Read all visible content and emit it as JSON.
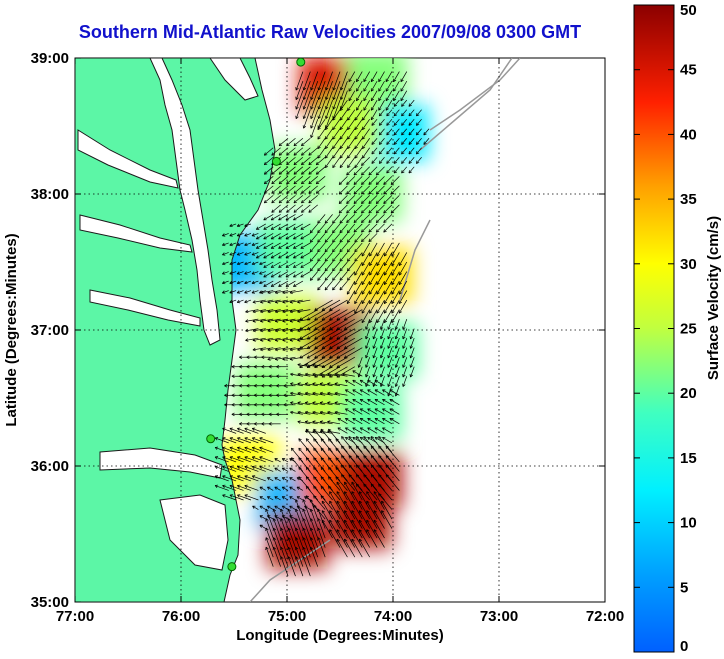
{
  "title": "Southern Mid-Atlantic Raw Velocities 2007/09/08 0300 GMT",
  "map": {
    "xlabel": "Longitude (Degrees:Minutes)",
    "ylabel": "Latitude (Degrees:Minutes)",
    "lon_range": [
      -77,
      -72
    ],
    "lat_range": [
      35,
      39
    ],
    "x_ticks": [
      {
        "value": -77,
        "label": "77:00"
      },
      {
        "value": -76,
        "label": "76:00"
      },
      {
        "value": -75,
        "label": "75:00"
      },
      {
        "value": -74,
        "label": "74:00"
      },
      {
        "value": -73,
        "label": "73:00"
      },
      {
        "value": -72,
        "label": "72:00"
      }
    ],
    "y_ticks": [
      {
        "value": 39,
        "label": "39:00"
      },
      {
        "value": 38,
        "label": "38:00"
      },
      {
        "value": 37,
        "label": "37:00"
      },
      {
        "value": 36,
        "label": "36:00"
      },
      {
        "value": 35,
        "label": "35:00"
      }
    ],
    "grid": "dotted",
    "land_color": "#5cf6a6",
    "coast_color": "#1a1a1a",
    "bathymetry_color": "#999999"
  },
  "colorbar": {
    "label": "Surface Velocity (cm/s)",
    "range": [
      0,
      50
    ],
    "ticks": [
      {
        "value": 0,
        "label": "0"
      },
      {
        "value": 5,
        "label": "5"
      },
      {
        "value": 10,
        "label": "10"
      },
      {
        "value": 15,
        "label": "15"
      },
      {
        "value": 20,
        "label": "20"
      },
      {
        "value": 25,
        "label": "25"
      },
      {
        "value": 30,
        "label": "30"
      },
      {
        "value": 35,
        "label": "35"
      },
      {
        "value": 40,
        "label": "40"
      },
      {
        "value": 45,
        "label": "45"
      },
      {
        "value": 50,
        "label": "50"
      }
    ],
    "colormap": "jet"
  },
  "radar_sites": [
    {
      "lon": -74.87,
      "lat": 38.97
    },
    {
      "lon": -75.1,
      "lat": 38.24
    },
    {
      "lon": -75.72,
      "lat": 36.2
    },
    {
      "lon": -75.52,
      "lat": 35.26
    }
  ],
  "velocity_regions": [
    {
      "lon": -74.6,
      "lat": 38.8,
      "speed": 45,
      "dir": 200
    },
    {
      "lon": -74.15,
      "lat": 38.85,
      "speed": 22,
      "dir": 210
    },
    {
      "lon": -73.95,
      "lat": 38.45,
      "speed": 12,
      "dir": 220
    },
    {
      "lon": -74.4,
      "lat": 38.5,
      "speed": 25,
      "dir": 215
    },
    {
      "lon": -74.9,
      "lat": 38.15,
      "speed": 22,
      "dir": 230
    },
    {
      "lon": -74.2,
      "lat": 38.0,
      "speed": 22,
      "dir": 225
    },
    {
      "lon": -75.4,
      "lat": 37.5,
      "speed": 8,
      "dir": 250
    },
    {
      "lon": -75.0,
      "lat": 37.6,
      "speed": 20,
      "dir": 240
    },
    {
      "lon": -74.5,
      "lat": 37.6,
      "speed": 22,
      "dir": 220
    },
    {
      "lon": -74.1,
      "lat": 37.4,
      "speed": 32,
      "dir": 210
    },
    {
      "lon": -75.0,
      "lat": 37.05,
      "speed": 26,
      "dir": 260
    },
    {
      "lon": -74.5,
      "lat": 36.95,
      "speed": 48,
      "dir": 240
    },
    {
      "lon": -74.05,
      "lat": 36.85,
      "speed": 20,
      "dir": 200
    },
    {
      "lon": -75.2,
      "lat": 36.55,
      "speed": 22,
      "dir": 270
    },
    {
      "lon": -74.6,
      "lat": 36.5,
      "speed": 25,
      "dir": 280
    },
    {
      "lon": -74.2,
      "lat": 36.4,
      "speed": 20,
      "dir": 300
    },
    {
      "lon": -75.35,
      "lat": 36.0,
      "speed": 30,
      "dir": 290
    },
    {
      "lon": -75.0,
      "lat": 35.75,
      "speed": 8,
      "dir": 300
    },
    {
      "lon": -74.6,
      "lat": 35.9,
      "speed": 40,
      "dir": 320
    },
    {
      "lon": -74.3,
      "lat": 35.6,
      "speed": 48,
      "dir": 330
    },
    {
      "lon": -74.9,
      "lat": 35.45,
      "speed": 48,
      "dir": 340
    },
    {
      "lon": -74.2,
      "lat": 35.9,
      "speed": 48,
      "dir": 320
    }
  ]
}
